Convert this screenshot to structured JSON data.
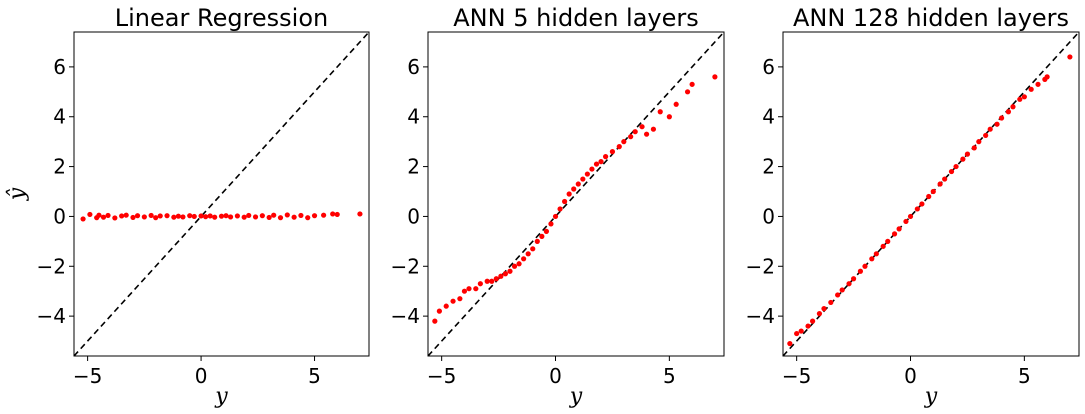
{
  "chart_data": [
    {
      "type": "scatter",
      "title": "Linear Regression",
      "xlabel": "y",
      "ylabel": "ŷ",
      "xlim": [
        -5.6,
        7.4
      ],
      "ylim": [
        -5.6,
        7.4
      ],
      "xticks": [
        -5,
        0,
        5
      ],
      "xtick_labels": [
        "−5",
        "0",
        "5"
      ],
      "yticks": [
        -4,
        -2,
        0,
        2,
        4,
        6
      ],
      "ytick_labels": [
        "−4",
        "−2",
        "0",
        "2",
        "4",
        "6"
      ],
      "grid": false,
      "reference_line": "y = x (black dashed)",
      "series": [
        {
          "color": "#ff0000",
          "description": "predictions roughly constant near 0",
          "x": [
            -5.2,
            -4.9,
            -4.6,
            -4.5,
            -4.3,
            -4.1,
            -3.8,
            -3.5,
            -3.3,
            -3.0,
            -2.8,
            -2.5,
            -2.2,
            -2.0,
            -1.8,
            -1.5,
            -1.2,
            -1.0,
            -0.8,
            -0.5,
            -0.3,
            0.0,
            0.2,
            0.4,
            0.6,
            0.9,
            1.1,
            1.3,
            1.6,
            1.9,
            2.1,
            2.4,
            2.7,
            3.0,
            3.2,
            3.5,
            3.8,
            4.1,
            4.4,
            4.7,
            5.0,
            5.4,
            5.8,
            6.0,
            7.0
          ],
          "y": [
            -0.1,
            0.08,
            -0.05,
            0.05,
            -0.03,
            0.04,
            -0.06,
            0.02,
            0.05,
            -0.04,
            0.03,
            -0.02,
            0.04,
            -0.05,
            0.02,
            0.03,
            -0.03,
            0.01,
            -0.02,
            0.03,
            0.0,
            0.02,
            -0.01,
            0.02,
            -0.03,
            0.01,
            0.03,
            -0.02,
            0.02,
            -0.03,
            0.04,
            -0.02,
            0.03,
            -0.04,
            0.05,
            -0.05,
            0.06,
            -0.03,
            0.04,
            -0.05,
            0.03,
            0.05,
            0.1,
            0.08,
            0.1
          ]
        }
      ]
    },
    {
      "type": "scatter",
      "title": "ANN 5 hidden layers",
      "xlabel": "y",
      "ylabel": "",
      "xlim": [
        -5.6,
        7.4
      ],
      "ylim": [
        -5.6,
        7.4
      ],
      "xticks": [
        -5,
        0,
        5
      ],
      "xtick_labels": [
        "−5",
        "0",
        "5"
      ],
      "yticks": [
        -4,
        -2,
        0,
        2,
        4,
        6
      ],
      "ytick_labels": [
        "−4",
        "−2",
        "0",
        "2",
        "4",
        "6"
      ],
      "grid": false,
      "reference_line": "y = x (black dashed)",
      "series": [
        {
          "color": "#ff0000",
          "description": "S-shaped curve: overestimates negatives, underestimates large positives",
          "x": [
            -5.3,
            -5.1,
            -4.8,
            -4.5,
            -4.2,
            -4.0,
            -3.8,
            -3.5,
            -3.3,
            -3.0,
            -2.8,
            -2.6,
            -2.4,
            -2.2,
            -2.0,
            -1.8,
            -1.6,
            -1.4,
            -1.2,
            -1.0,
            -0.8,
            -0.6,
            -0.4,
            -0.2,
            0.0,
            0.2,
            0.4,
            0.6,
            0.8,
            1.0,
            1.2,
            1.4,
            1.6,
            1.8,
            2.0,
            2.2,
            2.5,
            2.8,
            3.0,
            3.3,
            3.5,
            3.8,
            4.0,
            4.3,
            4.6,
            5.0,
            5.3,
            5.8,
            6.0,
            7.0
          ],
          "y": [
            -4.2,
            -3.8,
            -3.6,
            -3.4,
            -3.3,
            -3.0,
            -2.9,
            -2.9,
            -2.7,
            -2.6,
            -2.6,
            -2.5,
            -2.4,
            -2.3,
            -2.2,
            -2.0,
            -1.9,
            -1.7,
            -1.5,
            -1.3,
            -1.0,
            -0.8,
            -0.6,
            -0.3,
            0.0,
            0.3,
            0.6,
            0.9,
            1.1,
            1.3,
            1.5,
            1.7,
            1.9,
            2.1,
            2.2,
            2.4,
            2.6,
            2.8,
            3.0,
            3.2,
            3.4,
            3.6,
            3.3,
            3.5,
            4.2,
            4.0,
            4.5,
            5.0,
            5.3,
            5.6
          ]
        }
      ]
    },
    {
      "type": "scatter",
      "title": "ANN 128 hidden layers",
      "xlabel": "y",
      "ylabel": "",
      "xlim": [
        -5.6,
        7.4
      ],
      "ylim": [
        -5.6,
        7.4
      ],
      "xticks": [
        -5,
        0,
        5
      ],
      "xtick_labels": [
        "−5",
        "0",
        "5"
      ],
      "yticks": [
        -4,
        -2,
        0,
        2,
        4,
        6
      ],
      "ytick_labels": [
        "−4",
        "−2",
        "0",
        "2",
        "4",
        "6"
      ],
      "grid": false,
      "reference_line": "y = x (black dashed)",
      "series": [
        {
          "color": "#ff0000",
          "description": "predictions lie tightly along y = x",
          "x": [
            -5.3,
            -5.0,
            -4.8,
            -4.5,
            -4.3,
            -4.0,
            -3.8,
            -3.5,
            -3.2,
            -3.0,
            -2.7,
            -2.5,
            -2.2,
            -2.0,
            -1.7,
            -1.5,
            -1.2,
            -1.0,
            -0.7,
            -0.5,
            -0.2,
            0.0,
            0.3,
            0.5,
            0.8,
            1.0,
            1.3,
            1.5,
            1.8,
            2.0,
            2.3,
            2.5,
            2.8,
            3.0,
            3.3,
            3.5,
            3.8,
            4.0,
            4.3,
            4.5,
            4.8,
            5.0,
            5.3,
            5.6,
            5.9,
            6.0,
            7.0
          ],
          "y": [
            -5.1,
            -4.7,
            -4.6,
            -4.4,
            -4.2,
            -3.9,
            -3.7,
            -3.45,
            -3.15,
            -2.95,
            -2.7,
            -2.5,
            -2.2,
            -2.0,
            -1.7,
            -1.5,
            -1.2,
            -1.0,
            -0.7,
            -0.5,
            -0.2,
            0.0,
            0.3,
            0.5,
            0.8,
            1.0,
            1.3,
            1.5,
            1.8,
            2.0,
            2.3,
            2.5,
            2.75,
            3.0,
            3.25,
            3.5,
            3.7,
            3.95,
            4.2,
            4.4,
            4.7,
            4.8,
            5.1,
            5.3,
            5.5,
            5.6,
            6.4
          ]
        }
      ]
    }
  ]
}
